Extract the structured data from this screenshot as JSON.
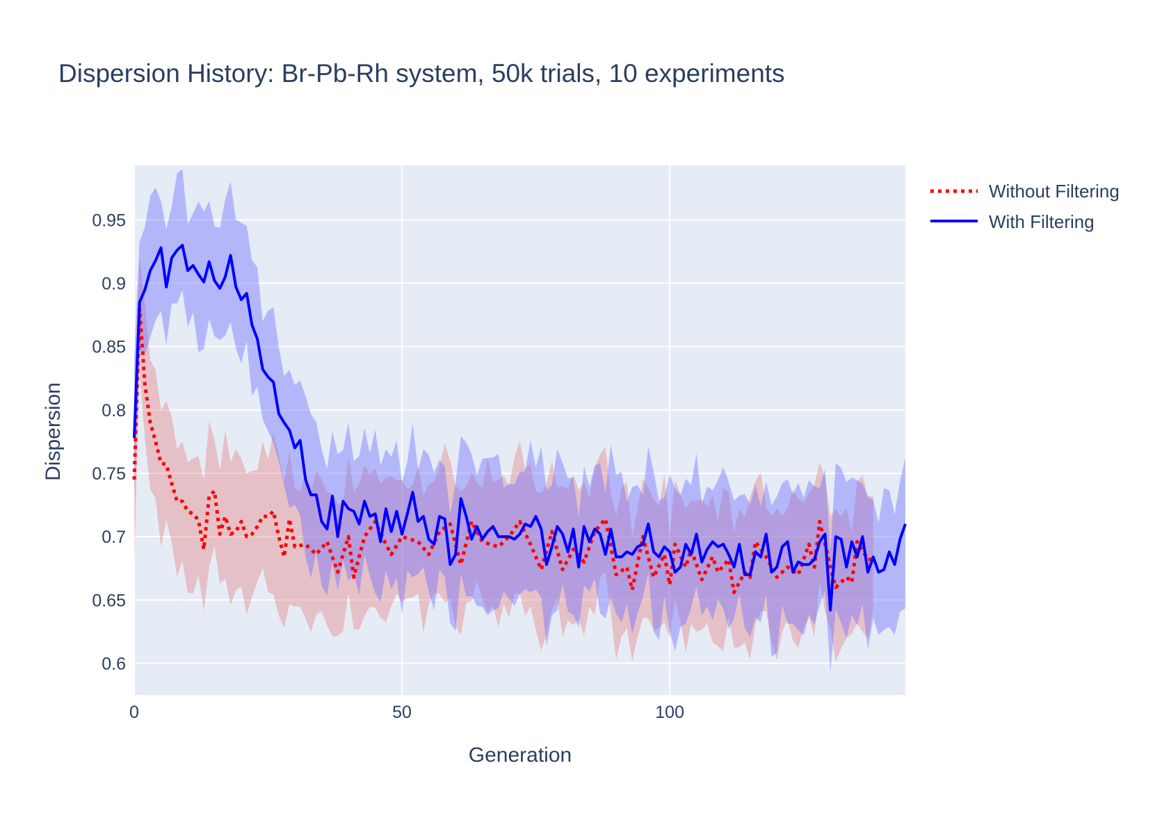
{
  "chart_data": {
    "type": "line",
    "title": "Dispersion History: Br-Pb-Rh system, 50k trials, 10 experiments",
    "xlabel": "Generation",
    "ylabel": "Dispersion",
    "xlim": [
      0,
      144
    ],
    "ylim": [
      0.575,
      0.993
    ],
    "x_ticks": [
      0,
      50,
      100
    ],
    "x_tick_labels": [
      "0",
      "50",
      "100"
    ],
    "y_ticks": [
      0.6,
      0.65,
      0.7,
      0.75,
      0.8,
      0.85,
      0.9,
      0.95
    ],
    "y_tick_labels": [
      "0.6",
      "0.65",
      "0.7",
      "0.75",
      "0.8",
      "0.85",
      "0.9",
      "0.95"
    ],
    "grid": true,
    "legend_position": "right",
    "series": [
      {
        "name": "Without Filtering",
        "color": "#ff0000",
        "band_color": "rgba(230,90,90,0.30)",
        "line_style": "dotted",
        "last_x": 138,
        "anchors": [
          [
            0,
            0.745
          ],
          [
            1,
            0.88
          ],
          [
            2,
            0.82
          ],
          [
            3,
            0.79
          ],
          [
            4,
            0.775
          ],
          [
            5,
            0.758
          ],
          [
            6,
            0.757
          ],
          [
            7,
            0.742
          ],
          [
            8,
            0.728
          ],
          [
            9,
            0.728
          ],
          [
            10,
            0.72
          ],
          [
            11,
            0.718
          ],
          [
            12,
            0.713
          ],
          [
            13,
            0.69
          ],
          [
            14,
            0.732
          ],
          [
            15,
            0.736
          ],
          [
            16,
            0.702
          ],
          [
            17,
            0.716
          ],
          [
            18,
            0.702
          ],
          [
            19,
            0.704
          ],
          [
            20,
            0.712
          ],
          [
            21,
            0.7
          ],
          [
            22,
            0.702
          ],
          [
            23,
            0.708
          ],
          [
            24,
            0.716
          ],
          [
            25,
            0.716
          ],
          [
            26,
            0.72
          ],
          [
            27,
            0.7
          ],
          [
            28,
            0.684
          ],
          [
            29,
            0.714
          ],
          [
            30,
            0.692
          ],
          [
            32,
            0.694
          ],
          [
            34,
            0.686
          ],
          [
            36,
            0.696
          ],
          [
            38,
            0.672
          ],
          [
            40,
            0.7
          ],
          [
            41,
            0.668
          ],
          [
            43,
            0.7
          ],
          [
            45,
            0.712
          ],
          [
            47,
            0.694
          ],
          [
            48,
            0.686
          ],
          [
            50,
            0.7
          ],
          [
            53,
            0.696
          ],
          [
            55,
            0.686
          ],
          [
            57,
            0.704
          ],
          [
            59,
            0.71
          ],
          [
            61,
            0.678
          ],
          [
            63,
            0.712
          ],
          [
            65,
            0.696
          ],
          [
            68,
            0.692
          ],
          [
            70,
            0.7
          ],
          [
            72,
            0.712
          ],
          [
            74,
            0.694
          ],
          [
            76,
            0.674
          ],
          [
            78,
            0.704
          ],
          [
            80,
            0.674
          ],
          [
            82,
            0.69
          ],
          [
            84,
            0.68
          ],
          [
            86,
            0.704
          ],
          [
            88,
            0.714
          ],
          [
            90,
            0.67
          ],
          [
            92,
            0.676
          ],
          [
            93,
            0.658
          ],
          [
            95,
            0.7
          ],
          [
            97,
            0.668
          ],
          [
            99,
            0.686
          ],
          [
            100,
            0.662
          ],
          [
            101,
            0.694
          ],
          [
            103,
            0.676
          ],
          [
            104,
            0.69
          ],
          [
            106,
            0.666
          ],
          [
            108,
            0.684
          ],
          [
            109,
            0.672
          ],
          [
            111,
            0.682
          ],
          [
            112,
            0.656
          ],
          [
            114,
            0.672
          ],
          [
            115,
            0.668
          ],
          [
            116,
            0.696
          ],
          [
            118,
            0.684
          ],
          [
            120,
            0.668
          ],
          [
            122,
            0.676
          ],
          [
            124,
            0.67
          ],
          [
            126,
            0.694
          ],
          [
            127,
            0.676
          ],
          [
            128,
            0.712
          ],
          [
            129,
            0.694
          ],
          [
            130,
            0.676
          ],
          [
            131,
            0.66
          ],
          [
            133,
            0.668
          ],
          [
            134,
            0.664
          ],
          [
            135,
            0.696
          ],
          [
            137,
            0.682
          ],
          [
            138,
            0.682
          ]
        ]
      },
      {
        "name": "With Filtering",
        "color": "#0000ff",
        "band_color": "rgba(110,110,255,0.42)",
        "line_style": "solid",
        "last_x": 144,
        "anchors": [
          [
            0,
            0.778
          ],
          [
            1,
            0.885
          ],
          [
            2,
            0.895
          ],
          [
            3,
            0.91
          ],
          [
            4,
            0.918
          ],
          [
            5,
            0.928
          ],
          [
            6,
            0.897
          ],
          [
            7,
            0.92
          ],
          [
            8,
            0.926
          ],
          [
            9,
            0.93
          ],
          [
            10,
            0.91
          ],
          [
            11,
            0.914
          ],
          [
            12,
            0.907
          ],
          [
            13,
            0.901
          ],
          [
            14,
            0.917
          ],
          [
            15,
            0.902
          ],
          [
            16,
            0.896
          ],
          [
            17,
            0.905
          ],
          [
            18,
            0.922
          ],
          [
            19,
            0.897
          ],
          [
            20,
            0.887
          ],
          [
            21,
            0.892
          ],
          [
            22,
            0.867
          ],
          [
            23,
            0.856
          ],
          [
            24,
            0.832
          ],
          [
            25,
            0.826
          ],
          [
            26,
            0.822
          ],
          [
            27,
            0.797
          ],
          [
            28,
            0.79
          ],
          [
            29,
            0.784
          ],
          [
            30,
            0.77
          ],
          [
            31,
            0.776
          ],
          [
            32,
            0.745
          ],
          [
            33,
            0.733
          ],
          [
            34,
            0.733
          ],
          [
            35,
            0.712
          ],
          [
            36,
            0.706
          ],
          [
            37,
            0.732
          ],
          [
            38,
            0.7
          ],
          [
            39,
            0.728
          ],
          [
            40,
            0.722
          ],
          [
            41,
            0.72
          ],
          [
            42,
            0.71
          ],
          [
            43,
            0.728
          ],
          [
            44,
            0.716
          ],
          [
            45,
            0.718
          ],
          [
            46,
            0.696
          ],
          [
            47,
            0.722
          ],
          [
            48,
            0.704
          ],
          [
            49,
            0.72
          ],
          [
            50,
            0.702
          ],
          [
            51,
            0.718
          ],
          [
            52,
            0.735
          ],
          [
            53,
            0.712
          ],
          [
            54,
            0.716
          ],
          [
            55,
            0.698
          ],
          [
            56,
            0.694
          ],
          [
            57,
            0.716
          ],
          [
            58,
            0.714
          ],
          [
            59,
            0.678
          ],
          [
            60,
            0.686
          ],
          [
            61,
            0.73
          ],
          [
            62,
            0.716
          ],
          [
            63,
            0.698
          ],
          [
            64,
            0.708
          ],
          [
            65,
            0.698
          ],
          [
            66,
            0.704
          ],
          [
            67,
            0.708
          ],
          [
            68,
            0.7
          ],
          [
            70,
            0.7
          ],
          [
            71,
            0.698
          ],
          [
            72,
            0.702
          ],
          [
            73,
            0.71
          ],
          [
            74,
            0.708
          ],
          [
            75,
            0.716
          ],
          [
            76,
            0.706
          ],
          [
            77,
            0.678
          ],
          [
            78,
            0.692
          ],
          [
            79,
            0.708
          ],
          [
            80,
            0.702
          ],
          [
            81,
            0.688
          ],
          [
            82,
            0.706
          ],
          [
            83,
            0.676
          ],
          [
            84,
            0.708
          ],
          [
            85,
            0.696
          ],
          [
            86,
            0.706
          ],
          [
            87,
            0.702
          ],
          [
            88,
            0.686
          ],
          [
            89,
            0.706
          ],
          [
            90,
            0.684
          ],
          [
            91,
            0.684
          ],
          [
            92,
            0.688
          ],
          [
            93,
            0.686
          ],
          [
            94,
            0.692
          ],
          [
            95,
            0.694
          ],
          [
            96,
            0.71
          ],
          [
            97,
            0.688
          ],
          [
            98,
            0.684
          ],
          [
            99,
            0.692
          ],
          [
            100,
            0.688
          ],
          [
            101,
            0.672
          ],
          [
            102,
            0.676
          ],
          [
            103,
            0.694
          ],
          [
            104,
            0.686
          ],
          [
            105,
            0.702
          ],
          [
            106,
            0.68
          ],
          [
            107,
            0.69
          ],
          [
            108,
            0.696
          ],
          [
            109,
            0.692
          ],
          [
            110,
            0.694
          ],
          [
            111,
            0.686
          ],
          [
            112,
            0.676
          ],
          [
            113,
            0.694
          ],
          [
            114,
            0.67
          ],
          [
            115,
            0.67
          ],
          [
            116,
            0.688
          ],
          [
            117,
            0.684
          ],
          [
            118,
            0.702
          ],
          [
            119,
            0.672
          ],
          [
            120,
            0.676
          ],
          [
            121,
            0.692
          ],
          [
            122,
            0.696
          ],
          [
            123,
            0.672
          ],
          [
            124,
            0.68
          ],
          [
            125,
            0.678
          ],
          [
            126,
            0.678
          ],
          [
            127,
            0.682
          ],
          [
            128,
            0.696
          ],
          [
            129,
            0.702
          ],
          [
            130,
            0.642
          ],
          [
            131,
            0.7
          ],
          [
            132,
            0.698
          ],
          [
            133,
            0.676
          ],
          [
            134,
            0.696
          ],
          [
            135,
            0.684
          ],
          [
            136,
            0.7
          ],
          [
            137,
            0.672
          ],
          [
            138,
            0.684
          ],
          [
            139,
            0.672
          ],
          [
            140,
            0.674
          ],
          [
            141,
            0.688
          ],
          [
            142,
            0.678
          ],
          [
            143,
            0.698
          ],
          [
            144,
            0.69
          ],
          [
            144,
            0.71
          ]
        ]
      }
    ]
  }
}
